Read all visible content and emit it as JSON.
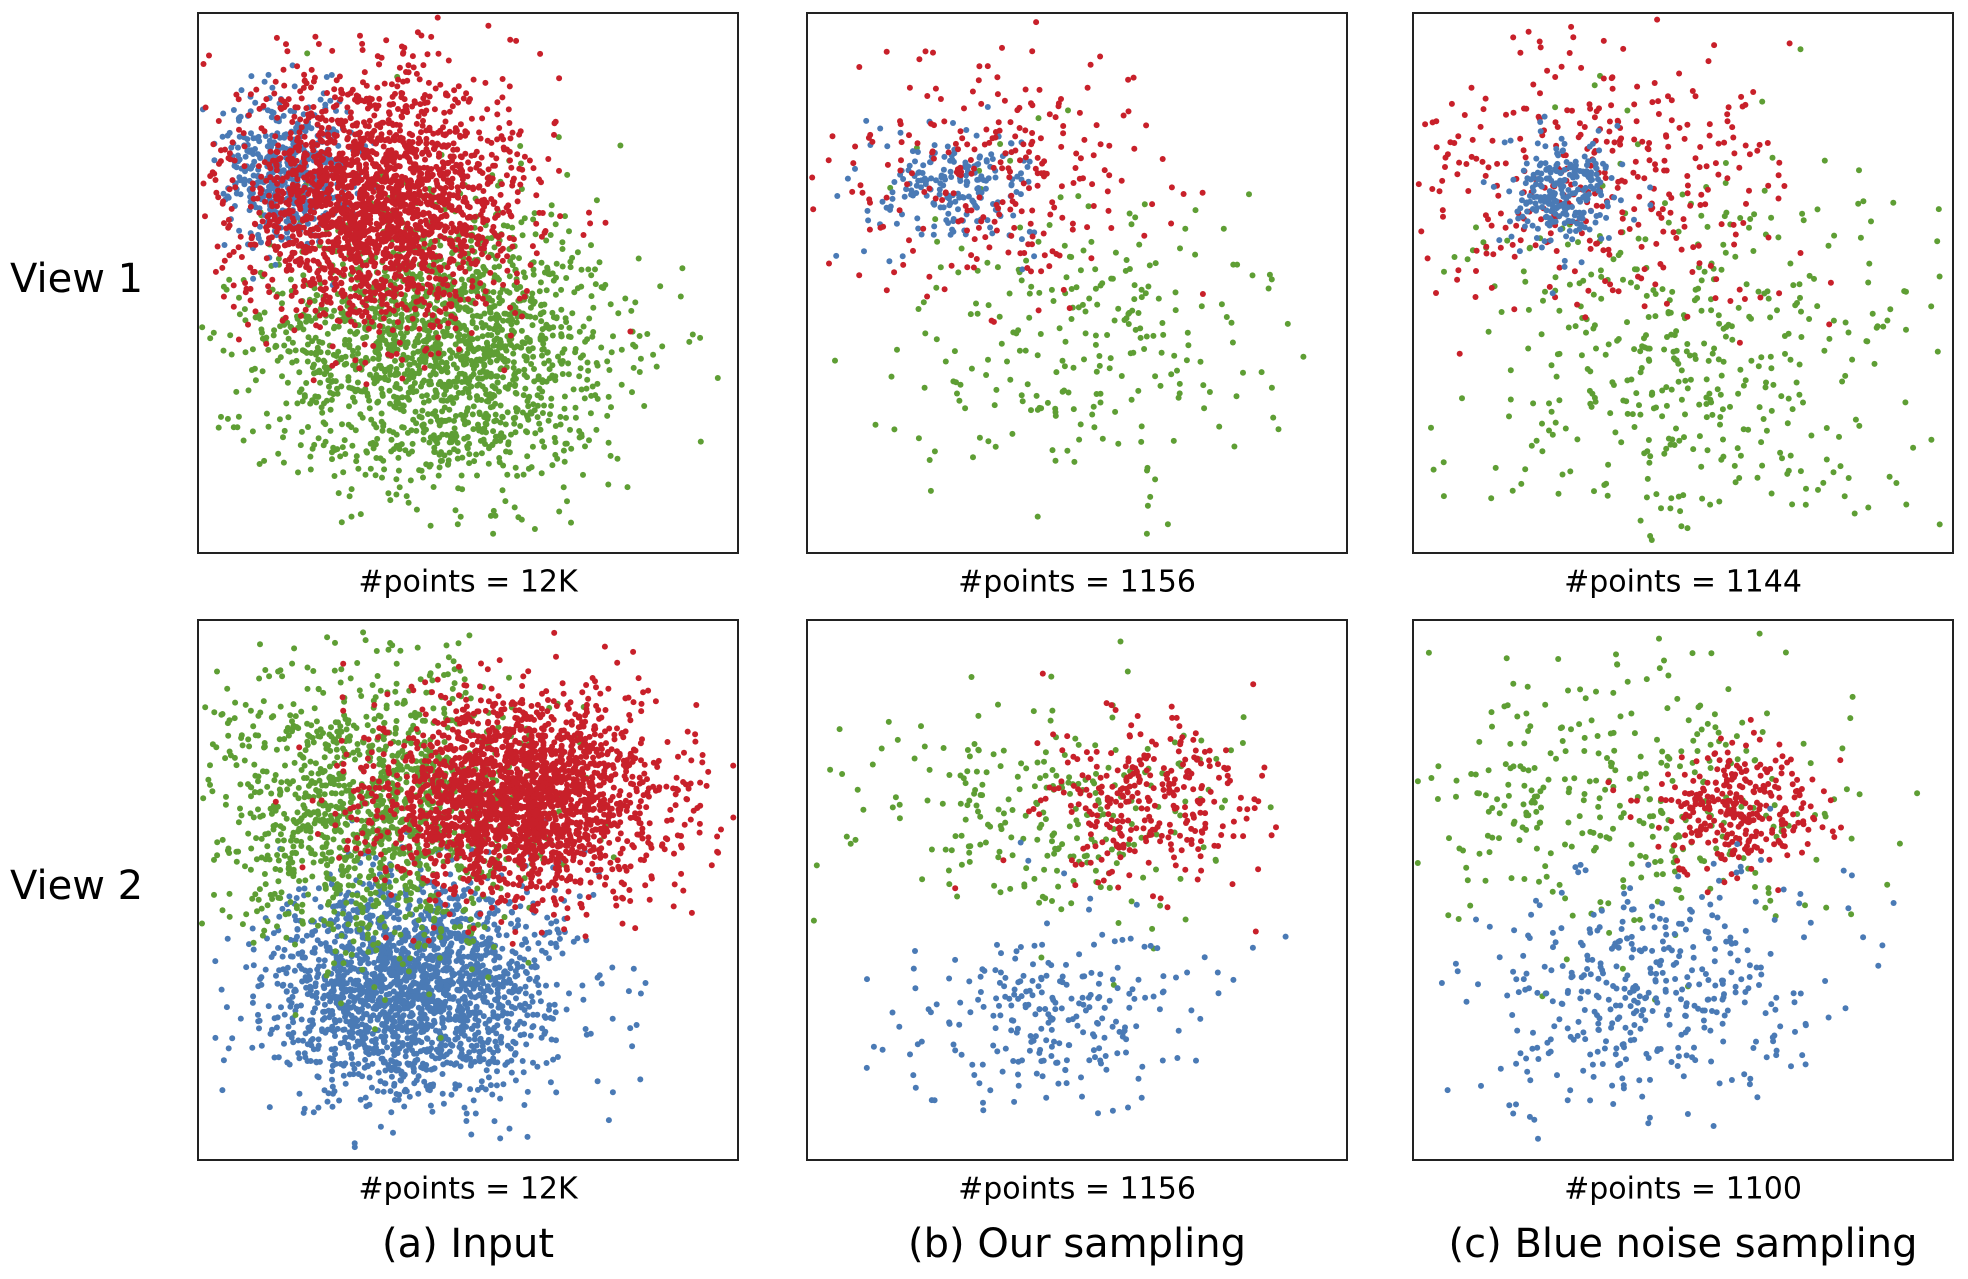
{
  "rows": [
    {
      "label": "View 1",
      "panels": [
        {
          "caption": "#points = 12K"
        },
        {
          "caption": "#points = 1156"
        },
        {
          "caption": "#points = 1144"
        }
      ]
    },
    {
      "label": "View 2",
      "panels": [
        {
          "caption": "#points = 12K"
        },
        {
          "caption": "#points = 1156"
        },
        {
          "caption": "#points = 1100"
        }
      ]
    }
  ],
  "columns": [
    "(a) Input",
    "(b) Our sampling",
    "(c) Blue noise sampling"
  ]
}
